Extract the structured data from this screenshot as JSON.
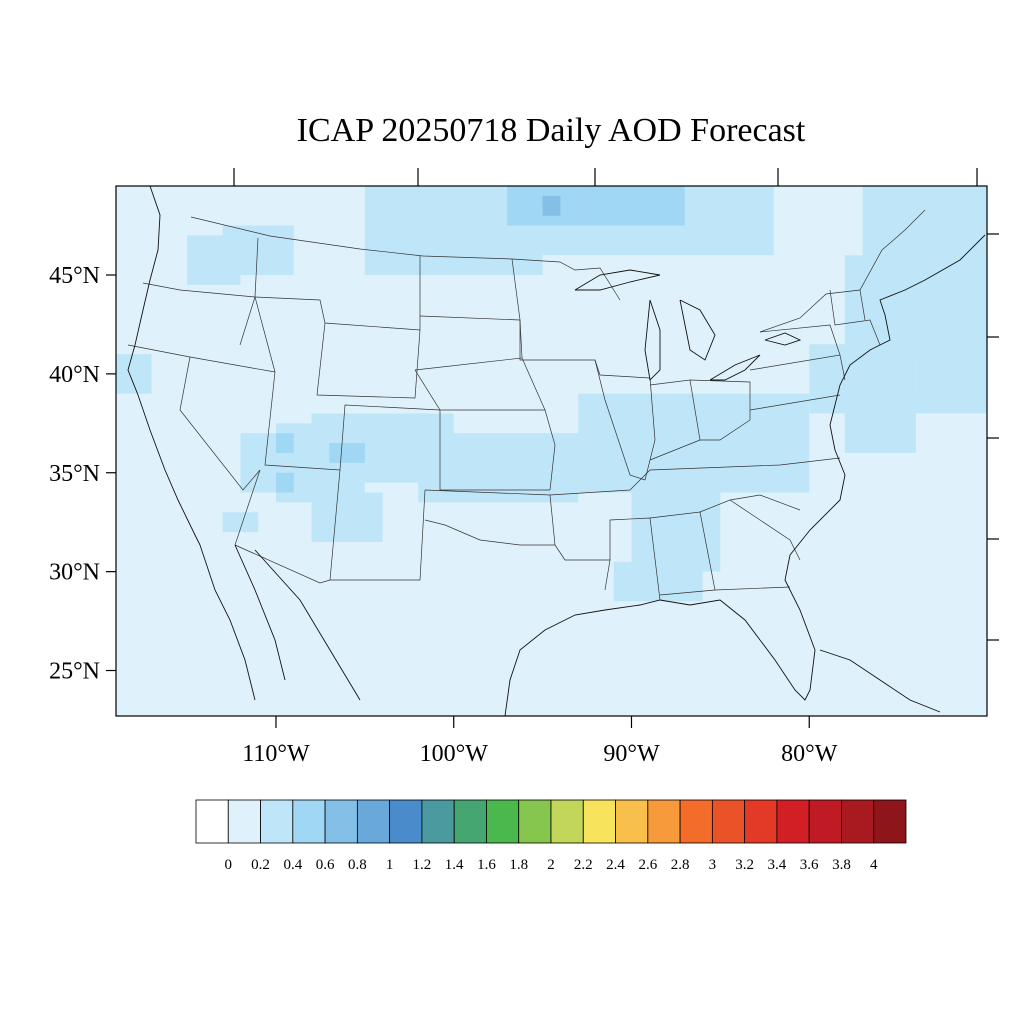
{
  "title": "ICAP 20250718 Daily AOD Forecast",
  "map": {
    "lon_range": [
      -119,
      -70
    ],
    "lat_range": [
      22.7,
      49.5
    ],
    "background_color": "#dff2fb",
    "lat_ticks": [
      {
        "value": 45,
        "label": "45°N"
      },
      {
        "value": 40,
        "label": "40°N"
      },
      {
        "value": 35,
        "label": "35°N"
      },
      {
        "value": 30,
        "label": "30°N"
      },
      {
        "value": 25,
        "label": "25°N"
      }
    ],
    "lon_ticks": [
      {
        "value": -110,
        "label": "110°W"
      },
      {
        "value": -100,
        "label": "100°W"
      },
      {
        "value": -90,
        "label": "90°W"
      },
      {
        "value": -80,
        "label": "80°W"
      }
    ],
    "aod_field": [
      {
        "lon": [
          -115,
          -112
        ],
        "lat": [
          44.5,
          47
        ],
        "level": 1
      },
      {
        "lon": [
          -113,
          -109
        ],
        "lat": [
          45,
          47.5
        ],
        "level": 1
      },
      {
        "lon": [
          -105,
          -95
        ],
        "lat": [
          45,
          49.5
        ],
        "level": 1
      },
      {
        "lon": [
          -95,
          -82
        ],
        "lat": [
          46,
          49.5
        ],
        "level": 1
      },
      {
        "lon": [
          -97,
          -93
        ],
        "lat": [
          47.5,
          49.5
        ],
        "level": 2
      },
      {
        "lon": [
          -95,
          -94
        ],
        "lat": [
          48,
          49
        ],
        "level": 3
      },
      {
        "lon": [
          -93,
          -87
        ],
        "lat": [
          47.5,
          49.5
        ],
        "level": 2
      },
      {
        "lon": [
          -78,
          -73
        ],
        "lat": [
          41,
          46
        ],
        "level": 1
      },
      {
        "lon": [
          -77,
          -70
        ],
        "lat": [
          43,
          49.5
        ],
        "level": 1
      },
      {
        "lon": [
          -74,
          -70
        ],
        "lat": [
          38,
          45
        ],
        "level": 1
      },
      {
        "lon": [
          -80,
          -74
        ],
        "lat": [
          38,
          41.5
        ],
        "level": 1
      },
      {
        "lon": [
          -78,
          -74
        ],
        "lat": [
          36,
          39
        ],
        "level": 1
      },
      {
        "lon": [
          -108,
          -100
        ],
        "lat": [
          34.5,
          38
        ],
        "level": 1
      },
      {
        "lon": [
          -110,
          -105
        ],
        "lat": [
          33.5,
          37.5
        ],
        "level": 1
      },
      {
        "lon": [
          -112,
          -108
        ],
        "lat": [
          34,
          37
        ],
        "level": 1
      },
      {
        "lon": [
          -110,
          -109
        ],
        "lat": [
          36,
          37
        ],
        "level": 2
      },
      {
        "lon": [
          -107,
          -105
        ],
        "lat": [
          35.5,
          36.5
        ],
        "level": 2
      },
      {
        "lon": [
          -110,
          -109
        ],
        "lat": [
          34,
          35
        ],
        "level": 2
      },
      {
        "lon": [
          -108,
          -104
        ],
        "lat": [
          31.5,
          34
        ],
        "level": 1
      },
      {
        "lon": [
          -102,
          -93
        ],
        "lat": [
          33.5,
          37
        ],
        "level": 1
      },
      {
        "lon": [
          -93,
          -80
        ],
        "lat": [
          34,
          39
        ],
        "level": 1
      },
      {
        "lon": [
          -90,
          -85
        ],
        "lat": [
          30,
          34
        ],
        "level": 1
      },
      {
        "lon": [
          -91,
          -86
        ],
        "lat": [
          28.5,
          30.5
        ],
        "level": 1
      },
      {
        "lon": [
          -119,
          -117
        ],
        "lat": [
          39,
          41
        ],
        "level": 1
      },
      {
        "lon": [
          -113,
          -111
        ],
        "lat": [
          32,
          33
        ],
        "level": 1
      }
    ]
  },
  "colorbar": {
    "levels": [
      "0",
      "0.2",
      "0.4",
      "0.6",
      "0.8",
      "1",
      "1.2",
      "1.4",
      "1.6",
      "1.8",
      "2",
      "2.2",
      "2.4",
      "2.6",
      "2.8",
      "3",
      "3.2",
      "3.4",
      "3.6",
      "3.8",
      "4"
    ],
    "colors": [
      "#ffffff",
      "#dff2fb",
      "#bfe6f8",
      "#a0d7f4",
      "#83bfe6",
      "#68a8db",
      "#4a8bcb",
      "#4a9aa0",
      "#46a672",
      "#4ab84c",
      "#86c54e",
      "#c2d65a",
      "#f8e45c",
      "#f8bf4a",
      "#f79a3c",
      "#f36c2a",
      "#ea5328",
      "#e23a27",
      "#d21f26",
      "#c01b24",
      "#a81a20",
      "#8e151a"
    ]
  }
}
